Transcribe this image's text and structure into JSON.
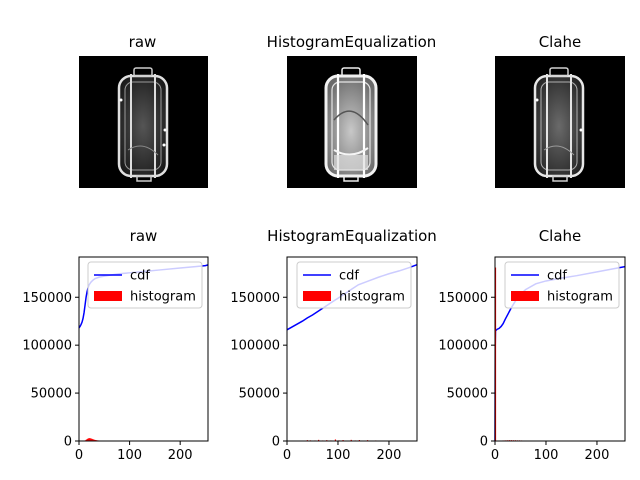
{
  "images": [
    {
      "title": "raw",
      "style": "raw"
    },
    {
      "title": "HistogramEqualization",
      "style": "equalized"
    },
    {
      "title": "Clahe",
      "style": "clahe"
    }
  ],
  "chart_data": [
    {
      "type": "bar",
      "title": "raw",
      "xlim": [
        0,
        255
      ],
      "ylim": [
        0,
        192000
      ],
      "xticks": [
        0,
        100,
        200
      ],
      "yticks": [
        0,
        50000,
        100000,
        150000
      ],
      "grid": false,
      "legend": {
        "location": "top-right",
        "entries": [
          {
            "label": "cdf",
            "color": "#0000ff"
          },
          {
            "label": "histogram",
            "color": "#ff0000"
          }
        ]
      },
      "series": [
        {
          "name": "cdf",
          "kind": "line",
          "color": "#0000ff",
          "x": [
            0,
            2,
            4,
            6,
            8,
            10,
            12,
            14,
            16,
            18,
            20,
            24,
            28,
            32,
            40,
            50,
            60,
            80,
            100,
            130,
            160,
            200,
            230,
            250,
            255
          ],
          "y": [
            118000,
            119500,
            121500,
            124000,
            128000,
            134000,
            142000,
            150000,
            156000,
            160000,
            163000,
            166000,
            168000,
            169500,
            171000,
            172000,
            173000,
            174500,
            175500,
            177000,
            178500,
            180500,
            182000,
            183000,
            183800
          ]
        },
        {
          "name": "histogram",
          "kind": "bar",
          "color": "#ff0000",
          "x": [
            12,
            14,
            16,
            18,
            20,
            22,
            24,
            26,
            28,
            30,
            32,
            34,
            36,
            38,
            40
          ],
          "y": [
            600,
            1200,
            2000,
            2600,
            3000,
            2900,
            2600,
            2200,
            1800,
            1400,
            1100,
            900,
            700,
            600,
            500
          ]
        }
      ]
    },
    {
      "type": "bar",
      "title": "HistogramEqualization",
      "xlim": [
        0,
        255
      ],
      "ylim": [
        0,
        192000
      ],
      "xticks": [
        0,
        100,
        200
      ],
      "yticks": [
        0,
        50000,
        100000,
        150000
      ],
      "grid": false,
      "legend": {
        "location": "top-right",
        "entries": [
          {
            "label": "cdf",
            "color": "#0000ff"
          },
          {
            "label": "histogram",
            "color": "#ff0000"
          }
        ]
      },
      "series": [
        {
          "name": "cdf",
          "kind": "line",
          "color": "#0000ff",
          "x": [
            0,
            10,
            20,
            30,
            40,
            50,
            60,
            70,
            80,
            90,
            100,
            110,
            120,
            130,
            140,
            160,
            180,
            200,
            220,
            240,
            255
          ],
          "y": [
            116000,
            119000,
            122000,
            125000,
            128500,
            131500,
            135000,
            138500,
            142000,
            145500,
            149000,
            152500,
            156000,
            159500,
            163000,
            167000,
            171000,
            174500,
            177500,
            181000,
            184000
          ]
        },
        {
          "name": "histogram",
          "kind": "bar",
          "color": "#ff0000",
          "x": [
            8,
            20,
            33,
            40,
            46,
            55,
            62,
            70,
            78,
            86,
            95,
            102,
            110,
            118,
            126,
            134,
            142,
            150,
            158,
            166,
            174
          ],
          "y": [
            400,
            500,
            500,
            900,
            700,
            600,
            1200,
            600,
            900,
            600,
            1600,
            700,
            1000,
            500,
            1200,
            600,
            1000,
            500,
            900,
            500,
            600
          ]
        }
      ]
    },
    {
      "type": "bar",
      "title": "Clahe",
      "xlim": [
        0,
        255
      ],
      "ylim": [
        0,
        192000
      ],
      "xticks": [
        0,
        100,
        200
      ],
      "yticks": [
        0,
        50000,
        100000,
        150000
      ],
      "grid": false,
      "legend": {
        "location": "top-right",
        "entries": [
          {
            "label": "cdf",
            "color": "#0000ff"
          },
          {
            "label": "histogram",
            "color": "#ff0000"
          }
        ]
      },
      "series": [
        {
          "name": "cdf",
          "kind": "line",
          "color": "#0000ff",
          "x": [
            0,
            0.5,
            1,
            2,
            4,
            8,
            12,
            16,
            20,
            26,
            32,
            40,
            50,
            60,
            80,
            100,
            130,
            160,
            200,
            230,
            255
          ],
          "y": [
            0,
            100000,
            115000,
            115500,
            116500,
            117500,
            119500,
            122500,
            127000,
            133000,
            139000,
            146000,
            153000,
            158000,
            164000,
            167000,
            170000,
            172500,
            176500,
            179500,
            182000
          ]
        },
        {
          "name": "histogram",
          "kind": "bar",
          "color": "#ff0000",
          "x": [
            1,
            16,
            20,
            24,
            28,
            32,
            36,
            40,
            44,
            48,
            52,
            56
          ],
          "y": [
            181000,
            600,
            700,
            800,
            900,
            900,
            800,
            800,
            700,
            700,
            600,
            500
          ]
        }
      ]
    }
  ]
}
